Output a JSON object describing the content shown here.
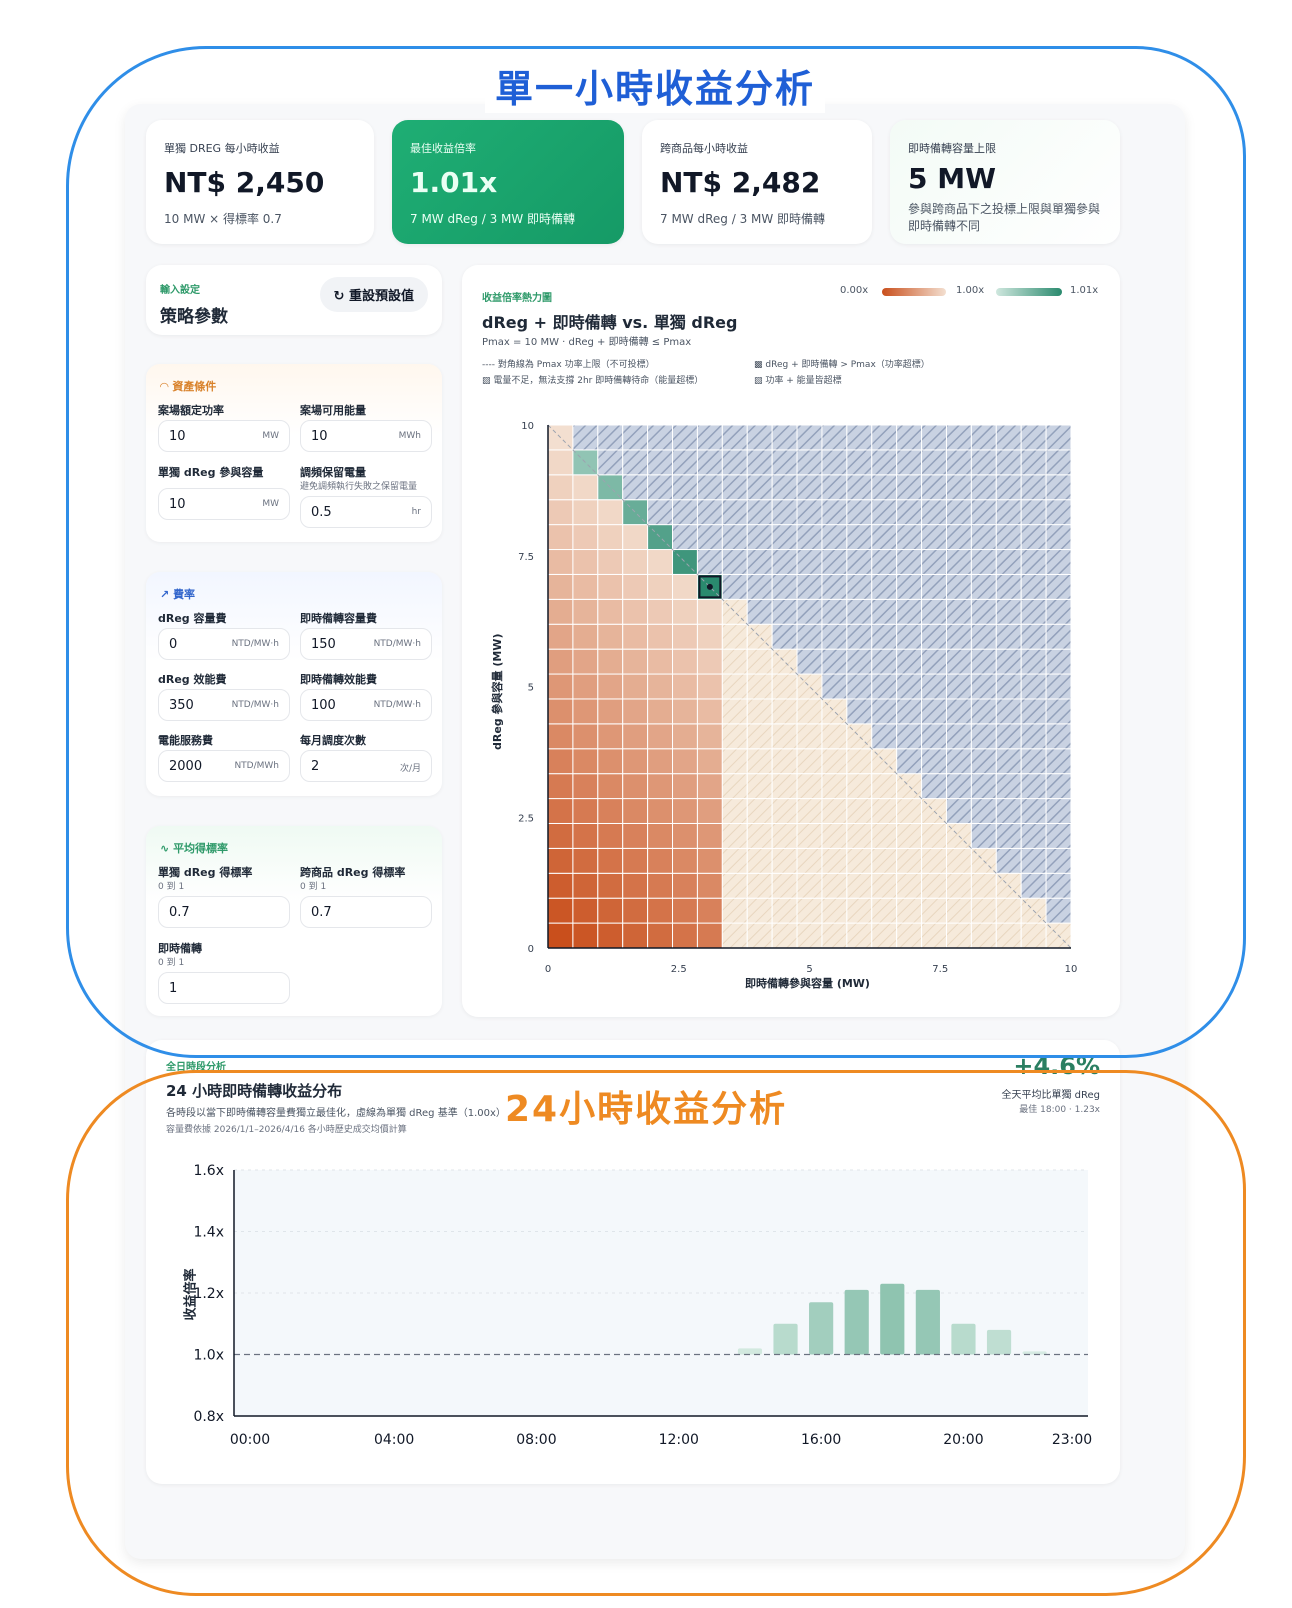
{
  "sections": {
    "single_hour_title": "單一小時收益分析",
    "day_title": "24小時收益分析"
  },
  "kpis": [
    {
      "label": "單獨 DREG 每小時收益",
      "value": "NT$ 2,450",
      "sub": "10 MW × 得標率 0.7"
    },
    {
      "label": "最佳收益倍率",
      "value": "1.01x",
      "sub": "7 MW dReg / 3 MW 即時備轉"
    },
    {
      "label": "跨商品每小時收益",
      "value": "NT$ 2,482",
      "sub": "7 MW dReg / 3 MW 即時備轉"
    },
    {
      "label": "即時備轉容量上限",
      "value": "5 MW",
      "sub": "參與跨商品下之投標上限與單獨參與即時備轉不同"
    }
  ],
  "settings": {
    "mini": "輸入設定",
    "title": "策略參數",
    "reset": "重設預設值"
  },
  "asset": {
    "title": "資產條件",
    "rated_power": {
      "label": "案場額定功率",
      "value": "10",
      "unit": "MW"
    },
    "energy": {
      "label": "案場可用能量",
      "value": "10",
      "unit": "MWh"
    },
    "dreg_cap": {
      "label": "單獨 dReg 參與容量",
      "value": "10",
      "unit": "MW"
    },
    "reserve": {
      "label": "調頻保留電量",
      "hint": "避免調頻執行失敗之保留電量",
      "value": "0.5",
      "unit": "hr"
    }
  },
  "rates": {
    "title": "費率",
    "dreg_capacity": {
      "label": "dReg 容量費",
      "value": "0",
      "unit": "NTD/MW·h"
    },
    "sr_capacity": {
      "label": "即時備轉容量費",
      "value": "150",
      "unit": "NTD/MW·h"
    },
    "dreg_perf": {
      "label": "dReg 效能費",
      "value": "350",
      "unit": "NTD/MW·h"
    },
    "sr_perf": {
      "label": "即時備轉效能費",
      "value": "100",
      "unit": "NTD/MW·h"
    },
    "energy_fee": {
      "label": "電能服務費",
      "value": "2000",
      "unit": "NTD/MWh"
    },
    "dispatch": {
      "label": "每月調度次數",
      "value": "2",
      "unit": "次/月"
    }
  },
  "award": {
    "title": "平均得標率",
    "solo_dreg": {
      "label": "單獨 dReg 得標率",
      "hint": "0 到 1",
      "value": "0.7"
    },
    "cross_dreg": {
      "label": "跨商品 dReg 得標率",
      "hint": "0 到 1",
      "value": "0.7"
    },
    "sr": {
      "label": "即時備轉",
      "hint": "0 到 1",
      "value": "1"
    }
  },
  "heatmap": {
    "mini": "收益倍率熱力圖",
    "title": "dReg + 即時備轉 vs. 單獨 dReg",
    "subtitle": "Pmax = 10 MW · dReg + 即時備轉 ≤ Pmax",
    "legend_min": "0.00x",
    "legend_mid": "1.00x",
    "legend_max": "1.01x",
    "note1": "---- 對角線為 Pmax 功率上限（不可投標）",
    "note2": "電量不足，無法支撐 2hr 即時備轉待命（能量超標）",
    "note3": "dReg + 即時備轉 > Pmax（功率超標）",
    "note4": "功率 + 能量皆超標",
    "xlabel": "即時備轉參與容量 (MW)",
    "ylabel": "dReg 參與容量 (MW)",
    "xticks": [
      "0",
      "2.5",
      "5",
      "7.5",
      "10"
    ],
    "yticks": [
      "10",
      "7.5",
      "5",
      "2.5",
      "0"
    ],
    "colors": {
      "low": "#c94f1c",
      "mid": "#f3dfd0",
      "high": "#2a8a6e"
    }
  },
  "day": {
    "mini": "全日時段分析",
    "title": "24 小時即時備轉收益分布",
    "desc": "各時段以當下即時備轉容量費獨立最佳化，虛線為單獨 dReg 基準（1.00x）",
    "source": "容量費依據 2026/1/1–2026/4/16 各小時歷史成交均價計算",
    "uplift": "+4.6%",
    "uplift_label": "全天平均比單獨 dReg",
    "best": "最佳 18:00 · 1.23x"
  },
  "chart_data": {
    "type": "bar",
    "title": "24 小時即時備轉收益分布",
    "ylabel": "收益倍率",
    "xlabel": "",
    "categories": [
      "00:00",
      "01:00",
      "02:00",
      "03:00",
      "04:00",
      "05:00",
      "06:00",
      "07:00",
      "08:00",
      "09:00",
      "10:00",
      "11:00",
      "12:00",
      "13:00",
      "14:00",
      "15:00",
      "16:00",
      "17:00",
      "18:00",
      "19:00",
      "20:00",
      "21:00",
      "22:00",
      "23:00"
    ],
    "values": [
      1.0,
      1.0,
      1.0,
      1.0,
      1.0,
      1.0,
      1.0,
      1.0,
      1.0,
      1.0,
      1.0,
      1.0,
      1.0,
      1.0,
      1.02,
      1.1,
      1.17,
      1.21,
      1.23,
      1.21,
      1.1,
      1.08,
      1.01,
      1.0
    ],
    "ylim": [
      0.8,
      1.6
    ],
    "yticks": [
      "1.6x",
      "1.4x",
      "1.2x",
      "1.0x",
      "0.8x"
    ],
    "xticks": [
      "00:00",
      "04:00",
      "08:00",
      "12:00",
      "16:00",
      "20:00",
      "23:00"
    ],
    "baseline": 1.0
  }
}
